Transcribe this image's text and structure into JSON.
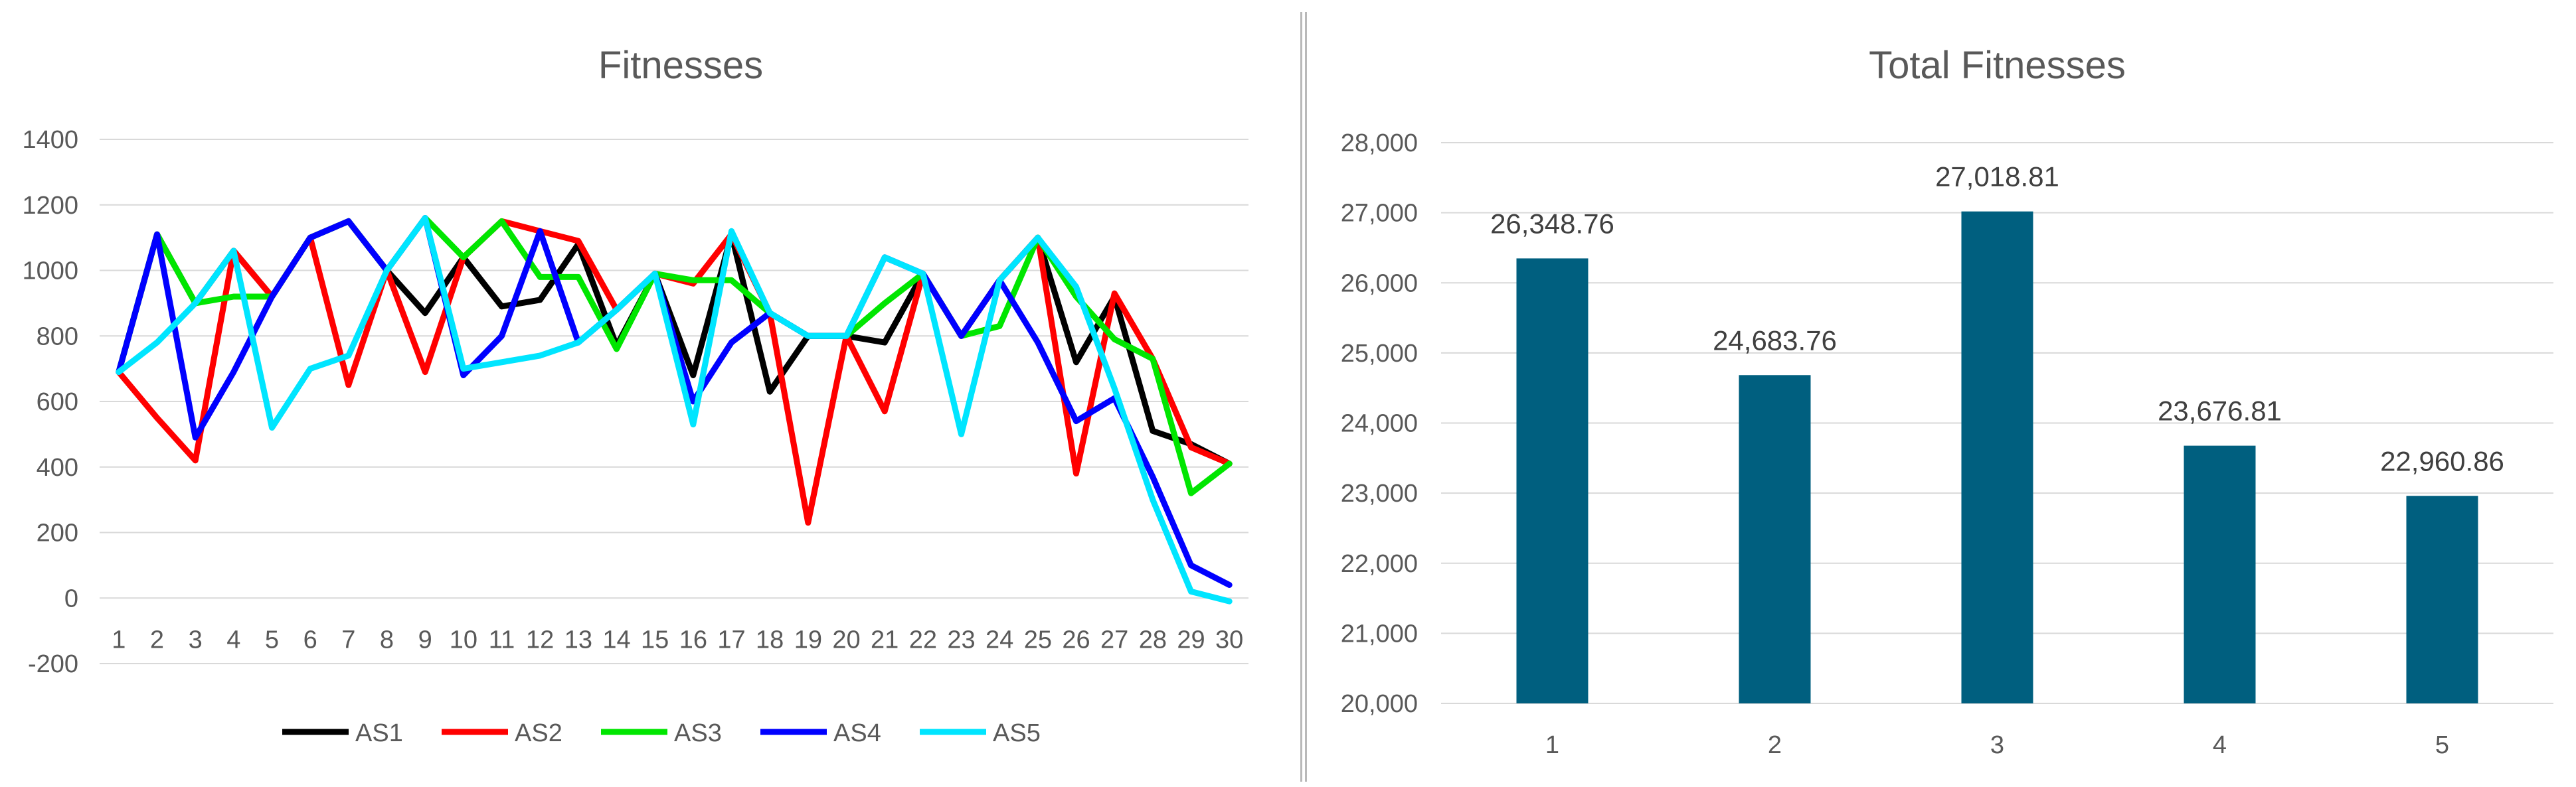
{
  "charts": [
    {
      "title": "Fitnesses",
      "type": "line",
      "ylim": [
        -200,
        1400
      ],
      "yticks": [
        "-200",
        "0",
        "200",
        "400",
        "600",
        "800",
        "1000",
        "1200",
        "1400"
      ],
      "categories": [
        "1",
        "2",
        "3",
        "4",
        "5",
        "6",
        "7",
        "8",
        "9",
        "10",
        "11",
        "12",
        "13",
        "14",
        "15",
        "16",
        "17",
        "18",
        "19",
        "20",
        "21",
        "22",
        "23",
        "24",
        "25",
        "26",
        "27",
        "28",
        "29",
        "30"
      ],
      "legend_position": "bottom",
      "grid": true,
      "series": [
        {
          "name": "AS1",
          "color": "#000000",
          "values": [
            690,
            1110,
            900,
            1060,
            920,
            1100,
            1150,
            1000,
            870,
            1040,
            890,
            910,
            1080,
            770,
            990,
            680,
            1110,
            630,
            800,
            800,
            780,
            990,
            800,
            970,
            1100,
            720,
            920,
            510,
            470,
            410
          ]
        },
        {
          "name": "AS2",
          "color": "#ff0000",
          "values": [
            690,
            550,
            420,
            1060,
            920,
            1100,
            650,
            1000,
            690,
            1040,
            1150,
            1120,
            1090,
            880,
            990,
            960,
            1110,
            870,
            230,
            800,
            570,
            990,
            800,
            970,
            1100,
            380,
            930,
            730,
            460,
            410
          ]
        },
        {
          "name": "AS3",
          "color": "#00e600",
          "values": [
            690,
            1110,
            900,
            920,
            920,
            1100,
            1150,
            1000,
            1160,
            1040,
            1150,
            980,
            980,
            760,
            990,
            970,
            970,
            870,
            800,
            800,
            900,
            990,
            800,
            830,
            1100,
            920,
            790,
            730,
            320,
            410
          ]
        },
        {
          "name": "AS4",
          "color": "#0000ff",
          "values": [
            690,
            1110,
            490,
            690,
            920,
            1100,
            1150,
            1000,
            1160,
            680,
            800,
            1120,
            780,
            880,
            990,
            600,
            780,
            870,
            800,
            800,
            1040,
            990,
            800,
            970,
            780,
            540,
            610,
            370,
            100,
            40
          ]
        },
        {
          "name": "AS5",
          "color": "#00e5ff",
          "values": [
            690,
            780,
            900,
            1060,
            520,
            700,
            740,
            1000,
            1160,
            700,
            720,
            740,
            780,
            880,
            990,
            530,
            1120,
            870,
            800,
            800,
            1040,
            990,
            500,
            970,
            1100,
            950,
            640,
            300,
            20,
            -10
          ]
        }
      ]
    },
    {
      "title": "Total Fitnesses",
      "type": "bar",
      "ylim": [
        20000,
        28000
      ],
      "yticks": [
        "20,000",
        "21,000",
        "22,000",
        "23,000",
        "24,000",
        "25,000",
        "26,000",
        "27,000",
        "28,000"
      ],
      "categories": [
        "1",
        "2",
        "3",
        "4",
        "5"
      ],
      "values": [
        26348.76,
        24683.76,
        27018.81,
        23676.81,
        22960.86
      ],
      "data_labels": [
        "26,348.76",
        "24,683.76",
        "27,018.81",
        "23,676.81",
        "22,960.86"
      ],
      "bar_color": "#005f7f",
      "grid": true
    }
  ]
}
